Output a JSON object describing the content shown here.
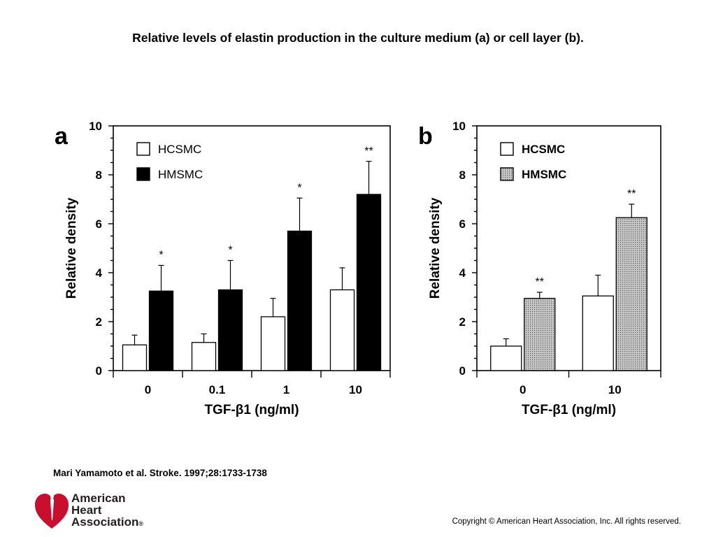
{
  "slide_title": "Relative levels of elastin production in the culture medium (a) or cell layer (b).",
  "citation": "Mari Yamamoto et al. Stroke. 1997;28:1733-1738",
  "logo": {
    "line1": "American",
    "line2": "Heart",
    "line3": "Association",
    "mark": "®"
  },
  "copyright": "Copyright © American Heart Association, Inc. All rights reserved.",
  "colors": {
    "hcsmc_fill": "#ffffff",
    "hmsmc_fill_a": "#000000",
    "hmsmc_fill_b": "#c8c8c8",
    "logo_red": "#c8102e"
  },
  "chart_data": [
    {
      "panel": "a",
      "type": "bar",
      "ylabel": "Relative density",
      "xlabel": "TGF-β1 (ng/ml)",
      "ylim": [
        0,
        10
      ],
      "yticks": [
        "0",
        "2",
        "4",
        "6",
        "8",
        "10"
      ],
      "categories": [
        "0",
        "0.1",
        "1",
        "10"
      ],
      "legend_position": "top-left",
      "series": [
        {
          "name": "HCSMC",
          "values": [
            1.05,
            1.15,
            2.2,
            3.3
          ],
          "errors": [
            0.4,
            0.35,
            0.75,
            0.9
          ]
        },
        {
          "name": "HMSMC",
          "values": [
            3.25,
            3.3,
            5.7,
            7.2
          ],
          "errors": [
            1.05,
            1.2,
            1.35,
            1.35
          ]
        }
      ],
      "annotations": [
        "*",
        "*",
        "*",
        "**"
      ]
    },
    {
      "panel": "b",
      "type": "bar",
      "ylabel": "Relative density",
      "xlabel": "TGF-β1 (ng/ml)",
      "ylim": [
        0,
        10
      ],
      "yticks": [
        "0",
        "2",
        "4",
        "6",
        "8",
        "10"
      ],
      "categories": [
        "0",
        "10"
      ],
      "legend_position": "top-left",
      "series": [
        {
          "name": "HCSMC",
          "values": [
            1.0,
            3.05
          ],
          "errors": [
            0.3,
            0.85
          ]
        },
        {
          "name": "HMSMC",
          "values": [
            2.95,
            6.25
          ],
          "errors": [
            0.25,
            0.55
          ]
        }
      ],
      "annotations": [
        "**",
        "**"
      ]
    }
  ]
}
